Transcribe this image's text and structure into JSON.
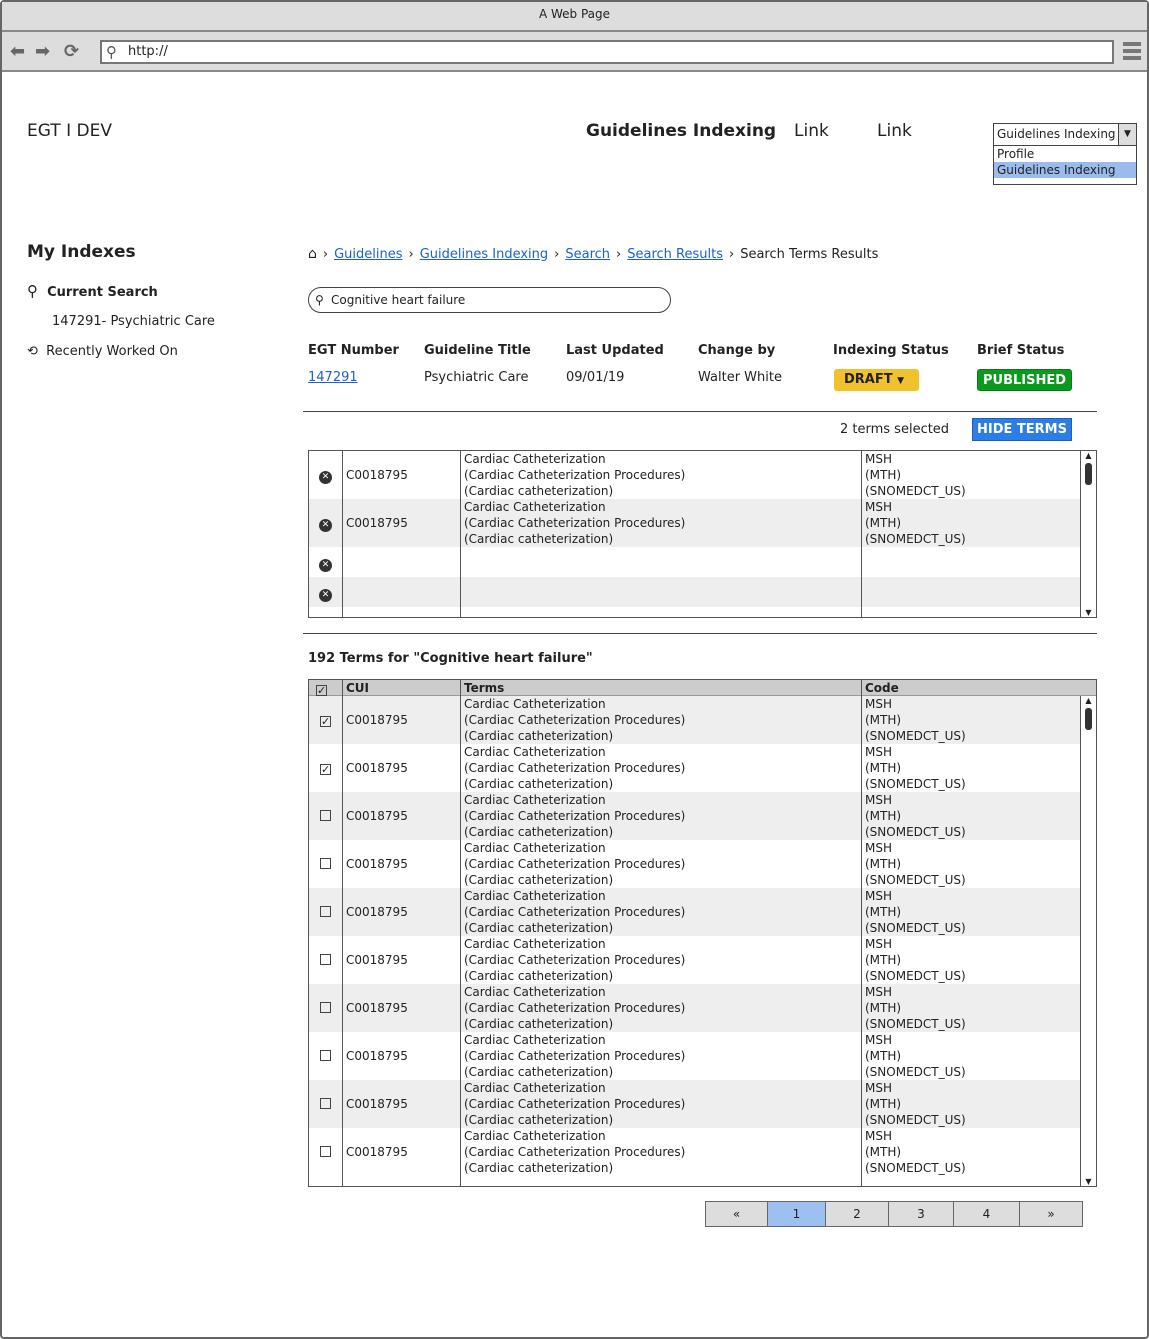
{
  "browser": {
    "title": "A Web Page",
    "url": "http://"
  },
  "header": {
    "brand": "EGT I DEV",
    "nav": [
      "Guidelines Indexing",
      "Link",
      "Link"
    ],
    "dropdown": {
      "selected": "Guidelines Indexing",
      "options": [
        "Profile",
        "Guidelines Indexing"
      ],
      "active_option": "Guidelines Indexing"
    }
  },
  "sidebar": {
    "title": "My Indexes",
    "current_search": "Current Search",
    "current_item": "147291- Psychiatric Care",
    "recent": "Recently Worked On"
  },
  "breadcrumb": {
    "links": [
      "Guidelines",
      "Guidelines Indexing",
      "Search",
      "Search Results"
    ],
    "current": "Search Terms Results"
  },
  "search": {
    "value": "Cognitive heart failure"
  },
  "guideline": {
    "headers": [
      "EGT Number",
      "Guideline Title",
      "Last Updated",
      "Change by",
      "Indexing Status",
      "Brief Status"
    ],
    "egt_number": "147291",
    "title": "Psychiatric Care",
    "last_updated": "09/01/19",
    "changed_by": "Walter White",
    "indexing_status": "DRAFT",
    "brief_status": "PUBLISHED"
  },
  "selection": {
    "count_text": "2 terms selected",
    "hide_label": "HIDE TERMS",
    "rows": [
      {
        "cui": "C0018795",
        "terms": [
          "Cardiac Catheterization",
          "(Cardiac Catheterization Procedures)",
          "(Cardiac catheterization)"
        ],
        "codes": [
          "MSH",
          "(MTH)",
          "(SNOMEDCT_US)"
        ]
      },
      {
        "cui": "C0018795",
        "terms": [
          "Cardiac Catheterization",
          "(Cardiac Catheterization Procedures)",
          "(Cardiac catheterization)"
        ],
        "codes": [
          "MSH",
          "(MTH)",
          "(SNOMEDCT_US)"
        ]
      },
      {
        "cui": "",
        "terms": [],
        "codes": []
      },
      {
        "cui": "",
        "terms": [],
        "codes": []
      }
    ]
  },
  "results": {
    "title": "192 Terms for \"Cognitive heart failure\"",
    "columns": [
      "CUI",
      "Terms",
      "Code"
    ],
    "header_checked": true,
    "rows": [
      {
        "checked": true,
        "cui": "C0018795",
        "terms": [
          "Cardiac Catheterization",
          "(Cardiac Catheterization Procedures)",
          "(Cardiac catheterization)"
        ],
        "codes": [
          "MSH",
          "(MTH)",
          "(SNOMEDCT_US)"
        ]
      },
      {
        "checked": true,
        "cui": "C0018795",
        "terms": [
          "Cardiac Catheterization",
          "(Cardiac Catheterization Procedures)",
          "(Cardiac catheterization)"
        ],
        "codes": [
          "MSH",
          "(MTH)",
          "(SNOMEDCT_US)"
        ]
      },
      {
        "checked": false,
        "cui": "C0018795",
        "terms": [
          "Cardiac Catheterization",
          "(Cardiac Catheterization Procedures)",
          "(Cardiac catheterization)"
        ],
        "codes": [
          "MSH",
          "(MTH)",
          "(SNOMEDCT_US)"
        ]
      },
      {
        "checked": false,
        "cui": "C0018795",
        "terms": [
          "Cardiac Catheterization",
          "(Cardiac Catheterization Procedures)",
          "(Cardiac catheterization)"
        ],
        "codes": [
          "MSH",
          "(MTH)",
          "(SNOMEDCT_US)"
        ]
      },
      {
        "checked": false,
        "cui": "C0018795",
        "terms": [
          "Cardiac Catheterization",
          "(Cardiac Catheterization Procedures)",
          "(Cardiac catheterization)"
        ],
        "codes": [
          "MSH",
          "(MTH)",
          "(SNOMEDCT_US)"
        ]
      },
      {
        "checked": false,
        "cui": "C0018795",
        "terms": [
          "Cardiac Catheterization",
          "(Cardiac Catheterization Procedures)",
          "(Cardiac catheterization)"
        ],
        "codes": [
          "MSH",
          "(MTH)",
          "(SNOMEDCT_US)"
        ]
      },
      {
        "checked": false,
        "cui": "C0018795",
        "terms": [
          "Cardiac Catheterization",
          "(Cardiac Catheterization Procedures)",
          "(Cardiac catheterization)"
        ],
        "codes": [
          "MSH",
          "(MTH)",
          "(SNOMEDCT_US)"
        ]
      },
      {
        "checked": false,
        "cui": "C0018795",
        "terms": [
          "Cardiac Catheterization",
          "(Cardiac Catheterization Procedures)",
          "(Cardiac catheterization)"
        ],
        "codes": [
          "MSH",
          "(MTH)",
          "(SNOMEDCT_US)"
        ]
      },
      {
        "checked": false,
        "cui": "C0018795",
        "terms": [
          "Cardiac Catheterization",
          "(Cardiac Catheterization Procedures)",
          "(Cardiac catheterization)"
        ],
        "codes": [
          "MSH",
          "(MTH)",
          "(SNOMEDCT_US)"
        ]
      },
      {
        "checked": false,
        "cui": "C0018795",
        "terms": [
          "Cardiac Catheterization",
          "(Cardiac Catheterization Procedures)",
          "(Cardiac catheterization)"
        ],
        "codes": [
          "MSH",
          "(MTH)",
          "(SNOMEDCT_US)"
        ]
      }
    ]
  },
  "pagination": {
    "pages": [
      "«",
      "1",
      "2",
      "3",
      "4",
      "»"
    ],
    "current": "1"
  },
  "colors": {
    "draft": "#f2c12e",
    "published": "#0a9a1e",
    "hide_button": "#2d7de6",
    "page_active": "#9cc0f0",
    "link": "#1a5fd6"
  }
}
